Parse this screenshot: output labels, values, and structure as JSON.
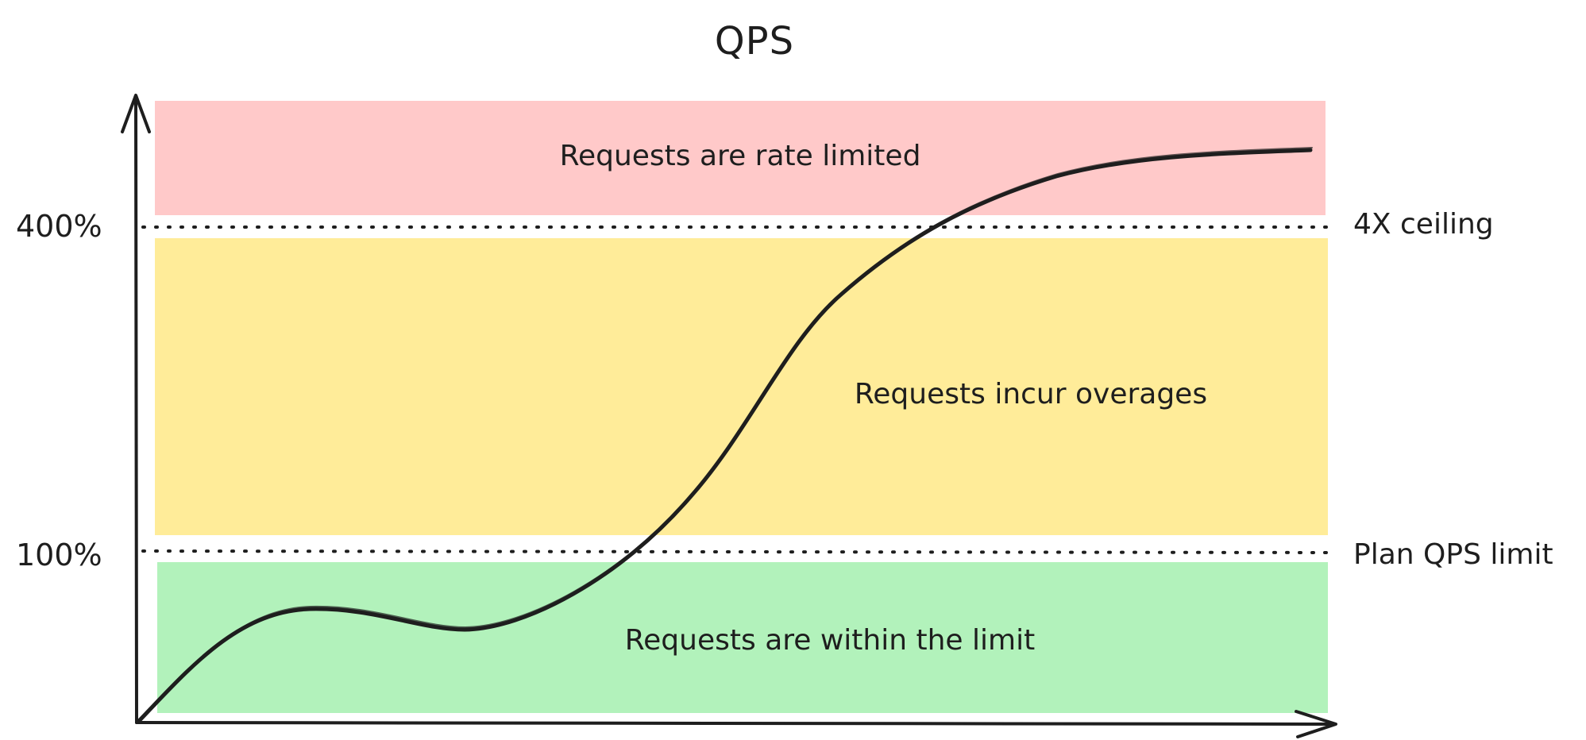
{
  "title": "QPS",
  "y_ticks": {
    "ceiling": "400%",
    "limit": "100%"
  },
  "thresholds": {
    "ceiling_label": "4X ceiling",
    "limit_label": "Plan QPS limit"
  },
  "bands": {
    "rate_limited": {
      "label": "Requests are rate limited",
      "color": "#ffc9c9"
    },
    "overages": {
      "label": "Requests incur overages",
      "color": "#ffec99"
    },
    "within": {
      "label": "Requests are within the limit",
      "color": "#b2f2bb"
    }
  },
  "colors": {
    "stroke": "#1e1e1e"
  }
}
